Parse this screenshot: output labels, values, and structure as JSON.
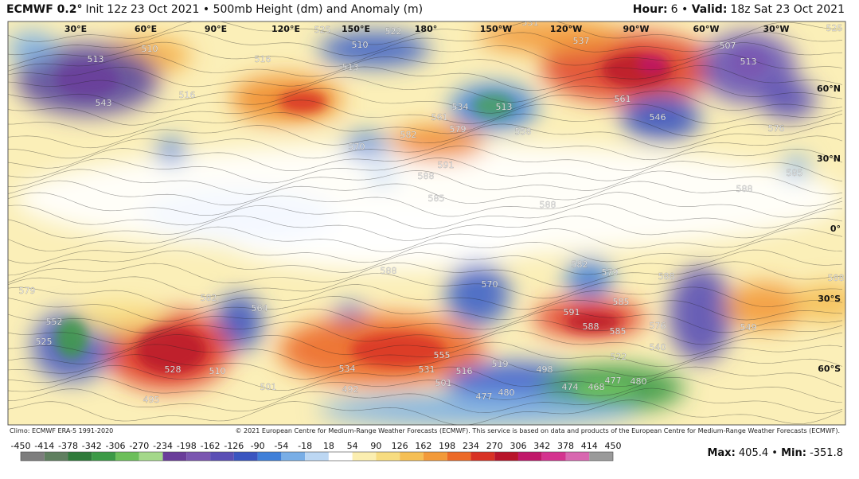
{
  "header": {
    "model": "ECMWF 0.2°",
    "description": "Init 12z 23 Oct 2021 • 500mb Height (dm) and Anomaly (m)",
    "hour_label": "Hour:",
    "hour": "6 •",
    "valid_label": "Valid:",
    "valid": "18z Sat 23 Oct 2021"
  },
  "map": {
    "longitude_labels": [
      "30°E",
      "60°E",
      "90°E",
      "120°E",
      "150°E",
      "180°",
      "150°W",
      "120°W",
      "90°W",
      "60°W",
      "30°W"
    ],
    "latitude_labels": [
      "60°N",
      "30°N",
      "0°",
      "30°S",
      "60°S"
    ],
    "contour_labels": [
      513,
      510,
      543,
      516,
      516,
      513,
      510,
      534,
      513,
      558,
      561,
      579,
      570,
      582,
      591,
      588,
      585,
      588,
      537,
      561,
      546,
      507,
      513,
      576,
      585,
      588,
      582,
      579,
      570,
      588,
      588,
      588,
      585,
      591,
      588,
      585,
      576,
      579,
      582,
      564,
      552,
      525,
      528,
      510,
      534,
      555,
      531,
      516,
      519,
      498,
      477,
      480,
      468,
      477,
      480,
      474,
      495,
      501,
      492,
      525,
      525,
      522,
      531,
      549,
      540,
      522,
      501
    ]
  },
  "footer": {
    "climo": "Climo: ECMWF ERA-5 1991-2020",
    "copyright": "© 2021 European Centre for Medium-Range Weather Forecasts (ECMWF). This service is based on data and products of the European Centre for Medium-Range Weather Forecasts (ECMWF).",
    "colorbar_ticks": [
      -450,
      -414,
      -378,
      -342,
      -306,
      -270,
      -234,
      -198,
      -162,
      -126,
      -90,
      -54,
      -18,
      18,
      54,
      90,
      126,
      162,
      198,
      234,
      270,
      306,
      342,
      378,
      414,
      450
    ],
    "colorbar_colors": [
      "#7d7d7d",
      "#5f7f5f",
      "#2f7a3a",
      "#3c9a46",
      "#6cbf5a",
      "#a4d88a",
      "#6a3d9a",
      "#7a56b0",
      "#5a4fb5",
      "#3a55c0",
      "#3f7fd8",
      "#79aee6",
      "#bcd7f3",
      "#ffffff",
      "#fbeeb0",
      "#f7dc80",
      "#f5bf55",
      "#f29a3a",
      "#ec6a28",
      "#d83224",
      "#b8142a",
      "#c0186a",
      "#d4338f",
      "#d868b0",
      "#9a9a9a"
    ],
    "max_label": "Max:",
    "max": 405.4,
    "separator": "•",
    "min_label": "Min:",
    "min": -351.8
  }
}
